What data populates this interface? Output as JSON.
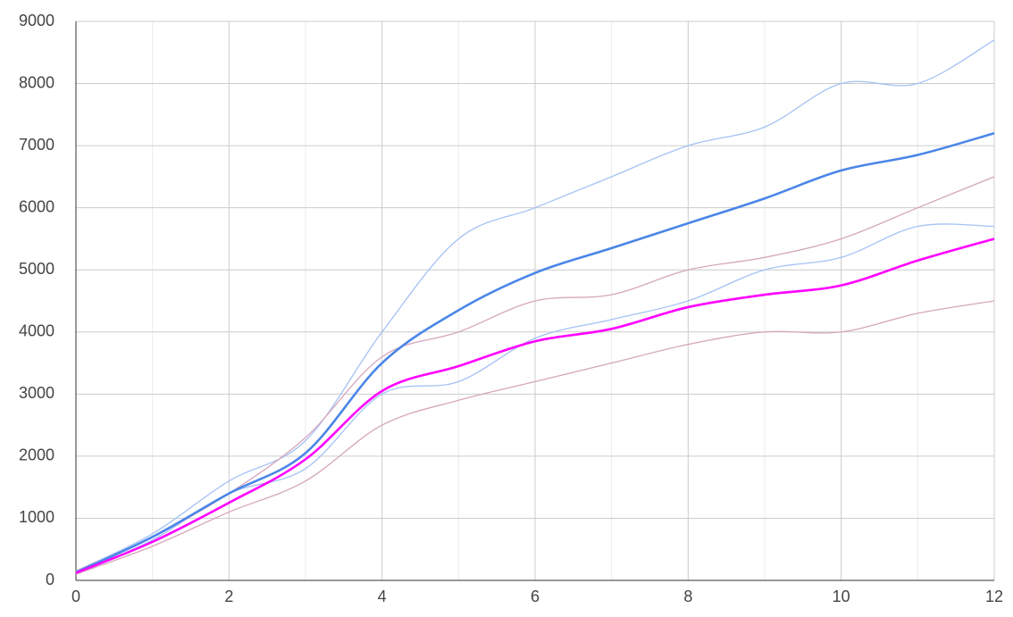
{
  "chart_data": {
    "type": "line",
    "x": [
      0,
      1,
      2,
      3,
      4,
      5,
      6,
      7,
      8,
      9,
      10,
      11,
      12
    ],
    "series": [
      {
        "color": "#4a86e8",
        "values": [
          130,
          700,
          1400,
          2050,
          3500,
          4350,
          4950,
          5350,
          5750,
          6150,
          6600,
          6850,
          7200
        ],
        "interval_color": "#a4c2f4",
        "interval_upper": [
          150,
          750,
          1600,
          2250,
          4000,
          5500,
          6000,
          6500,
          7000,
          7300,
          8000,
          8000,
          8700
        ],
        "interval_lower": [
          120,
          650,
          1400,
          1800,
          3000,
          3200,
          3900,
          4200,
          4500,
          5000,
          5200,
          5700,
          5700
        ]
      },
      {
        "color": "#ff00ff",
        "values": [
          120,
          620,
          1250,
          1950,
          3050,
          3450,
          3850,
          4050,
          4400,
          4600,
          4750,
          5150,
          5500
        ],
        "interval_color": "#d5a6bd",
        "interval_upper": [
          150,
          700,
          1400,
          2300,
          3600,
          4000,
          4500,
          4600,
          5000,
          5200,
          5500,
          6000,
          6500
        ],
        "interval_lower": [
          100,
          550,
          1100,
          1600,
          2500,
          2900,
          3200,
          3500,
          3800,
          4000,
          4000,
          4300,
          4500
        ]
      }
    ],
    "xlim": [
      0,
      12
    ],
    "xticks": [
      0,
      2,
      4,
      6,
      8,
      10,
      12
    ],
    "xminor": [
      1,
      3,
      5,
      7,
      9,
      11
    ],
    "ylim": [
      0,
      9000
    ],
    "yticks": [
      0,
      1000,
      2000,
      3000,
      4000,
      5000,
      6000,
      7000,
      8000,
      9000
    ],
    "grid": true
  }
}
